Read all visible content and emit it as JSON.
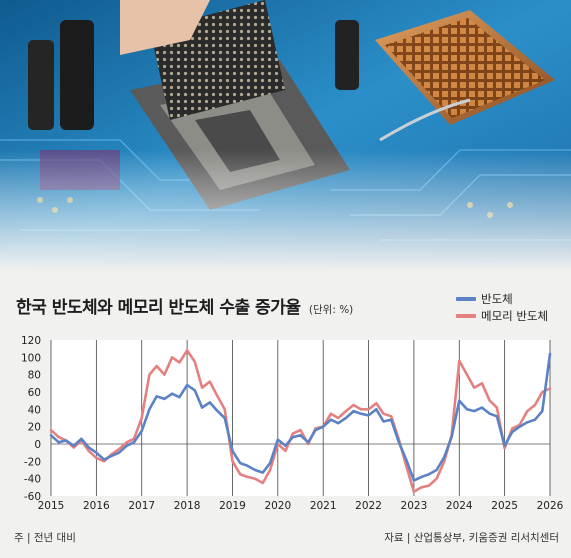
{
  "chart_data": {
    "type": "line",
    "title": "한국 반도체와 메모리 반도체 수출 증가율",
    "unit_note": "(단위: %)",
    "x_ticks": [
      "2015",
      "2016",
      "2017",
      "2018",
      "2019",
      "2020",
      "2021",
      "2022",
      "2023",
      "2024",
      "2025",
      "2026"
    ],
    "xlim": [
      2015,
      2026
    ],
    "y_ticks": [
      120,
      100,
      80,
      60,
      40,
      20,
      0,
      -20,
      -40,
      -60
    ],
    "ylim": [
      -60,
      120
    ],
    "grid_x": true,
    "legend_position": "top-right",
    "series": [
      {
        "name": "반도체",
        "color": "#5b82c4",
        "points": [
          [
            2015.0,
            10
          ],
          [
            2015.17,
            2
          ],
          [
            2015.33,
            4
          ],
          [
            2015.5,
            -2
          ],
          [
            2015.67,
            6
          ],
          [
            2015.83,
            -4
          ],
          [
            2016.0,
            -10
          ],
          [
            2016.17,
            -18
          ],
          [
            2016.33,
            -14
          ],
          [
            2016.5,
            -10
          ],
          [
            2016.67,
            -2
          ],
          [
            2016.83,
            2
          ],
          [
            2017.0,
            15
          ],
          [
            2017.17,
            40
          ],
          [
            2017.33,
            55
          ],
          [
            2017.5,
            52
          ],
          [
            2017.67,
            58
          ],
          [
            2017.83,
            54
          ],
          [
            2018.0,
            68
          ],
          [
            2018.17,
            62
          ],
          [
            2018.33,
            42
          ],
          [
            2018.5,
            48
          ],
          [
            2018.67,
            38
          ],
          [
            2018.83,
            30
          ],
          [
            2019.0,
            -8
          ],
          [
            2019.17,
            -22
          ],
          [
            2019.33,
            -25
          ],
          [
            2019.5,
            -30
          ],
          [
            2019.67,
            -33
          ],
          [
            2019.83,
            -22
          ],
          [
            2020.0,
            5
          ],
          [
            2020.17,
            -2
          ],
          [
            2020.33,
            8
          ],
          [
            2020.5,
            10
          ],
          [
            2020.67,
            2
          ],
          [
            2020.83,
            16
          ],
          [
            2021.0,
            20
          ],
          [
            2021.17,
            28
          ],
          [
            2021.33,
            24
          ],
          [
            2021.5,
            30
          ],
          [
            2021.67,
            38
          ],
          [
            2021.83,
            35
          ],
          [
            2022.0,
            33
          ],
          [
            2022.17,
            40
          ],
          [
            2022.33,
            26
          ],
          [
            2022.5,
            28
          ],
          [
            2022.67,
            2
          ],
          [
            2022.83,
            -18
          ],
          [
            2023.0,
            -42
          ],
          [
            2023.17,
            -38
          ],
          [
            2023.33,
            -35
          ],
          [
            2023.5,
            -30
          ],
          [
            2023.67,
            -15
          ],
          [
            2023.83,
            8
          ],
          [
            2024.0,
            50
          ],
          [
            2024.17,
            40
          ],
          [
            2024.33,
            38
          ],
          [
            2024.5,
            42
          ],
          [
            2024.67,
            35
          ],
          [
            2024.83,
            32
          ],
          [
            2025.0,
            -2
          ],
          [
            2025.17,
            14
          ],
          [
            2025.33,
            20
          ],
          [
            2025.5,
            25
          ],
          [
            2025.67,
            28
          ],
          [
            2025.83,
            38
          ],
          [
            2026.0,
            104
          ]
        ]
      },
      {
        "name": "메모리 반도체",
        "color": "#e58080",
        "points": [
          [
            2015.0,
            16
          ],
          [
            2015.17,
            8
          ],
          [
            2015.33,
            4
          ],
          [
            2015.5,
            -4
          ],
          [
            2015.67,
            4
          ],
          [
            2015.83,
            -8
          ],
          [
            2016.0,
            -16
          ],
          [
            2016.17,
            -20
          ],
          [
            2016.33,
            -12
          ],
          [
            2016.5,
            -6
          ],
          [
            2016.67,
            2
          ],
          [
            2016.83,
            6
          ],
          [
            2017.0,
            30
          ],
          [
            2017.17,
            80
          ],
          [
            2017.33,
            90
          ],
          [
            2017.5,
            80
          ],
          [
            2017.67,
            100
          ],
          [
            2017.83,
            94
          ],
          [
            2018.0,
            108
          ],
          [
            2018.17,
            95
          ],
          [
            2018.33,
            65
          ],
          [
            2018.5,
            72
          ],
          [
            2018.67,
            55
          ],
          [
            2018.83,
            40
          ],
          [
            2019.0,
            -20
          ],
          [
            2019.17,
            -35
          ],
          [
            2019.33,
            -38
          ],
          [
            2019.5,
            -40
          ],
          [
            2019.67,
            -45
          ],
          [
            2019.83,
            -30
          ],
          [
            2020.0,
            0
          ],
          [
            2020.17,
            -8
          ],
          [
            2020.33,
            12
          ],
          [
            2020.5,
            16
          ],
          [
            2020.67,
            0
          ],
          [
            2020.83,
            18
          ],
          [
            2021.0,
            20
          ],
          [
            2021.17,
            35
          ],
          [
            2021.33,
            30
          ],
          [
            2021.5,
            38
          ],
          [
            2021.67,
            45
          ],
          [
            2021.83,
            40
          ],
          [
            2022.0,
            40
          ],
          [
            2022.17,
            47
          ],
          [
            2022.33,
            35
          ],
          [
            2022.5,
            32
          ],
          [
            2022.67,
            5
          ],
          [
            2022.83,
            -25
          ],
          [
            2023.0,
            -55
          ],
          [
            2023.17,
            -50
          ],
          [
            2023.33,
            -48
          ],
          [
            2023.5,
            -40
          ],
          [
            2023.67,
            -20
          ],
          [
            2023.83,
            10
          ],
          [
            2024.0,
            96
          ],
          [
            2024.17,
            80
          ],
          [
            2024.33,
            65
          ],
          [
            2024.5,
            70
          ],
          [
            2024.67,
            50
          ],
          [
            2024.83,
            42
          ],
          [
            2025.0,
            -5
          ],
          [
            2025.17,
            18
          ],
          [
            2025.33,
            22
          ],
          [
            2025.5,
            38
          ],
          [
            2025.67,
            45
          ],
          [
            2025.83,
            60
          ],
          [
            2026.0,
            64
          ]
        ]
      }
    ]
  },
  "footer": {
    "left": "주 | 전년 대비",
    "right": "자료 | 산업통상부, 키움증권 리서치센터"
  },
  "photo": {
    "accent_colors": [
      "#2f8fc8",
      "#0e3f6e",
      "#c9d0d3",
      "#b86a2e",
      "#6e3c7a"
    ]
  }
}
